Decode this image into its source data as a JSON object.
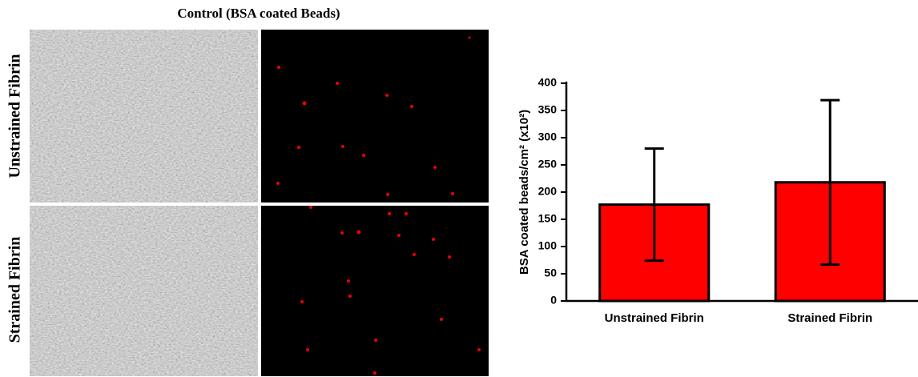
{
  "panel": {
    "title": "Control (BSA coated Beads)",
    "rows": [
      "Unstrained Fibrin",
      "Strained Fibrin"
    ]
  },
  "chart_data": {
    "type": "bar",
    "y_label": "BSA coated beads/cm² (x10²)",
    "categories": [
      "Unstrained Fibrin",
      "Strained Fibrin"
    ],
    "values": [
      177,
      218
    ],
    "errors": [
      103,
      151
    ],
    "color": "#ff0000",
    "ylim": [
      0,
      400
    ],
    "yticks": [
      0,
      50,
      100,
      150,
      200,
      250,
      300,
      350,
      400
    ],
    "grid": false
  }
}
